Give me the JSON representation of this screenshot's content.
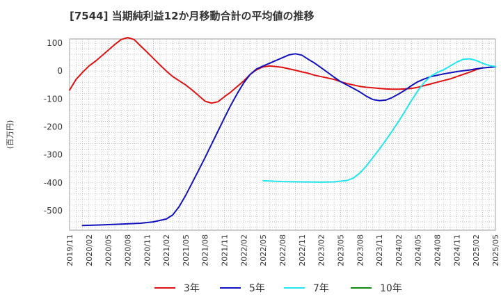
{
  "chart_data": {
    "type": "line",
    "title": "[7544]  当期純利益12か月移動合計の平均値の推移",
    "ylabel": "(百万円)",
    "xlabel": "",
    "ylim": [
      -570,
      115
    ],
    "yticks": [
      100,
      0,
      -100,
      -200,
      -300,
      -400,
      -500
    ],
    "xlim": [
      "2019/11",
      "2025/05"
    ],
    "x_tick_labels": [
      "2019/11",
      "2020/02",
      "2020/05",
      "2020/08",
      "2020/11",
      "2021/02",
      "2021/05",
      "2021/08",
      "2021/11",
      "2022/02",
      "2022/05",
      "2022/08",
      "2022/11",
      "2023/02",
      "2023/05",
      "2023/08",
      "2023/11",
      "2024/02",
      "2024/05",
      "2024/08",
      "2024/11",
      "2025/02",
      "2025/05"
    ],
    "grid": true,
    "legend_position": "bottom",
    "series": [
      {
        "name": "3年",
        "color": "#dd1111",
        "points": [
          [
            "2019/11",
            -68
          ],
          [
            "2019/12",
            -30
          ],
          [
            "2020/01",
            -5
          ],
          [
            "2020/02",
            18
          ],
          [
            "2020/03",
            35
          ],
          [
            "2020/04",
            55
          ],
          [
            "2020/05",
            75
          ],
          [
            "2020/06",
            95
          ],
          [
            "2020/07",
            113
          ],
          [
            "2020/08",
            120
          ],
          [
            "2020/09",
            113
          ],
          [
            "2020/10",
            90
          ],
          [
            "2020/11",
            68
          ],
          [
            "2020/12",
            45
          ],
          [
            "2021/01",
            22
          ],
          [
            "2021/02",
            0
          ],
          [
            "2021/03",
            -20
          ],
          [
            "2021/04",
            -35
          ],
          [
            "2021/05",
            -50
          ],
          [
            "2021/06",
            -68
          ],
          [
            "2021/07",
            -88
          ],
          [
            "2021/08",
            -108
          ],
          [
            "2021/09",
            -115
          ],
          [
            "2021/10",
            -110
          ],
          [
            "2021/11",
            -92
          ],
          [
            "2021/12",
            -75
          ],
          [
            "2022/01",
            -55
          ],
          [
            "2022/02",
            -35
          ],
          [
            "2022/03",
            -12
          ],
          [
            "2022/04",
            5
          ],
          [
            "2022/05",
            15
          ],
          [
            "2022/06",
            18
          ],
          [
            "2022/07",
            16
          ],
          [
            "2022/08",
            13
          ],
          [
            "2022/09",
            8
          ],
          [
            "2022/10",
            3
          ],
          [
            "2022/11",
            -3
          ],
          [
            "2022/12",
            -8
          ],
          [
            "2023/01",
            -15
          ],
          [
            "2023/02",
            -20
          ],
          [
            "2023/03",
            -25
          ],
          [
            "2023/04",
            -30
          ],
          [
            "2023/05",
            -38
          ],
          [
            "2023/06",
            -45
          ],
          [
            "2023/07",
            -50
          ],
          [
            "2023/08",
            -55
          ],
          [
            "2023/09",
            -58
          ],
          [
            "2023/10",
            -60
          ],
          [
            "2023/11",
            -62
          ],
          [
            "2023/12",
            -64
          ],
          [
            "2024/01",
            -65
          ],
          [
            "2024/02",
            -65
          ],
          [
            "2024/03",
            -64
          ],
          [
            "2024/04",
            -62
          ],
          [
            "2024/05",
            -58
          ],
          [
            "2024/06",
            -52
          ],
          [
            "2024/07",
            -46
          ],
          [
            "2024/08",
            -40
          ],
          [
            "2024/09",
            -34
          ],
          [
            "2024/10",
            -28
          ],
          [
            "2024/11",
            -20
          ],
          [
            "2024/12",
            -12
          ],
          [
            "2025/01",
            -4
          ],
          [
            "2025/02",
            5
          ],
          [
            "2025/03",
            12
          ]
        ]
      },
      {
        "name": "5年",
        "color": "#1111bb",
        "points": [
          [
            "2020/01",
            -553
          ],
          [
            "2020/04",
            -551
          ],
          [
            "2020/07",
            -548
          ],
          [
            "2020/10",
            -545
          ],
          [
            "2020/12",
            -540
          ],
          [
            "2021/02",
            -530
          ],
          [
            "2021/03",
            -515
          ],
          [
            "2021/04",
            -485
          ],
          [
            "2021/05",
            -445
          ],
          [
            "2021/06",
            -400
          ],
          [
            "2021/07",
            -355
          ],
          [
            "2021/08",
            -310
          ],
          [
            "2021/09",
            -262
          ],
          [
            "2021/10",
            -215
          ],
          [
            "2021/11",
            -168
          ],
          [
            "2021/12",
            -122
          ],
          [
            "2022/01",
            -80
          ],
          [
            "2022/02",
            -42
          ],
          [
            "2022/03",
            -12
          ],
          [
            "2022/04",
            8
          ],
          [
            "2022/05",
            18
          ],
          [
            "2022/06",
            28
          ],
          [
            "2022/07",
            38
          ],
          [
            "2022/08",
            48
          ],
          [
            "2022/09",
            58
          ],
          [
            "2022/10",
            62
          ],
          [
            "2022/11",
            57
          ],
          [
            "2022/12",
            42
          ],
          [
            "2023/01",
            28
          ],
          [
            "2023/02",
            12
          ],
          [
            "2023/03",
            -5
          ],
          [
            "2023/04",
            -22
          ],
          [
            "2023/05",
            -38
          ],
          [
            "2023/06",
            -50
          ],
          [
            "2023/07",
            -62
          ],
          [
            "2023/08",
            -75
          ],
          [
            "2023/09",
            -90
          ],
          [
            "2023/10",
            -102
          ],
          [
            "2023/11",
            -106
          ],
          [
            "2023/12",
            -104
          ],
          [
            "2024/01",
            -95
          ],
          [
            "2024/02",
            -82
          ],
          [
            "2024/03",
            -68
          ],
          [
            "2024/04",
            -52
          ],
          [
            "2024/05",
            -38
          ],
          [
            "2024/06",
            -28
          ],
          [
            "2024/07",
            -20
          ],
          [
            "2024/08",
            -15
          ],
          [
            "2024/09",
            -10
          ],
          [
            "2024/10",
            -6
          ],
          [
            "2024/11",
            -2
          ],
          [
            "2024/12",
            1
          ],
          [
            "2025/01",
            4
          ],
          [
            "2025/02",
            8
          ],
          [
            "2025/03",
            11
          ],
          [
            "2025/04",
            13
          ],
          [
            "2025/05",
            15
          ]
        ]
      },
      {
        "name": "7年",
        "color": "#22e5ee",
        "points": [
          [
            "2022/05",
            -393
          ],
          [
            "2022/08",
            -396
          ],
          [
            "2022/11",
            -397
          ],
          [
            "2023/02",
            -398
          ],
          [
            "2023/04",
            -397
          ],
          [
            "2023/06",
            -392
          ],
          [
            "2023/07",
            -383
          ],
          [
            "2023/08",
            -365
          ],
          [
            "2023/09",
            -340
          ],
          [
            "2023/10",
            -310
          ],
          [
            "2023/11",
            -280
          ],
          [
            "2023/12",
            -248
          ],
          [
            "2024/01",
            -215
          ],
          [
            "2024/02",
            -180
          ],
          [
            "2024/03",
            -143
          ],
          [
            "2024/04",
            -105
          ],
          [
            "2024/05",
            -70
          ],
          [
            "2024/06",
            -40
          ],
          [
            "2024/07",
            -18
          ],
          [
            "2024/08",
            -5
          ],
          [
            "2024/09",
            5
          ],
          [
            "2024/10",
            18
          ],
          [
            "2024/11",
            32
          ],
          [
            "2024/12",
            42
          ],
          [
            "2025/01",
            44
          ],
          [
            "2025/02",
            38
          ],
          [
            "2025/03",
            28
          ],
          [
            "2025/04",
            20
          ],
          [
            "2025/05",
            16
          ]
        ]
      },
      {
        "name": "10年",
        "color": "#118811",
        "points": []
      }
    ]
  }
}
